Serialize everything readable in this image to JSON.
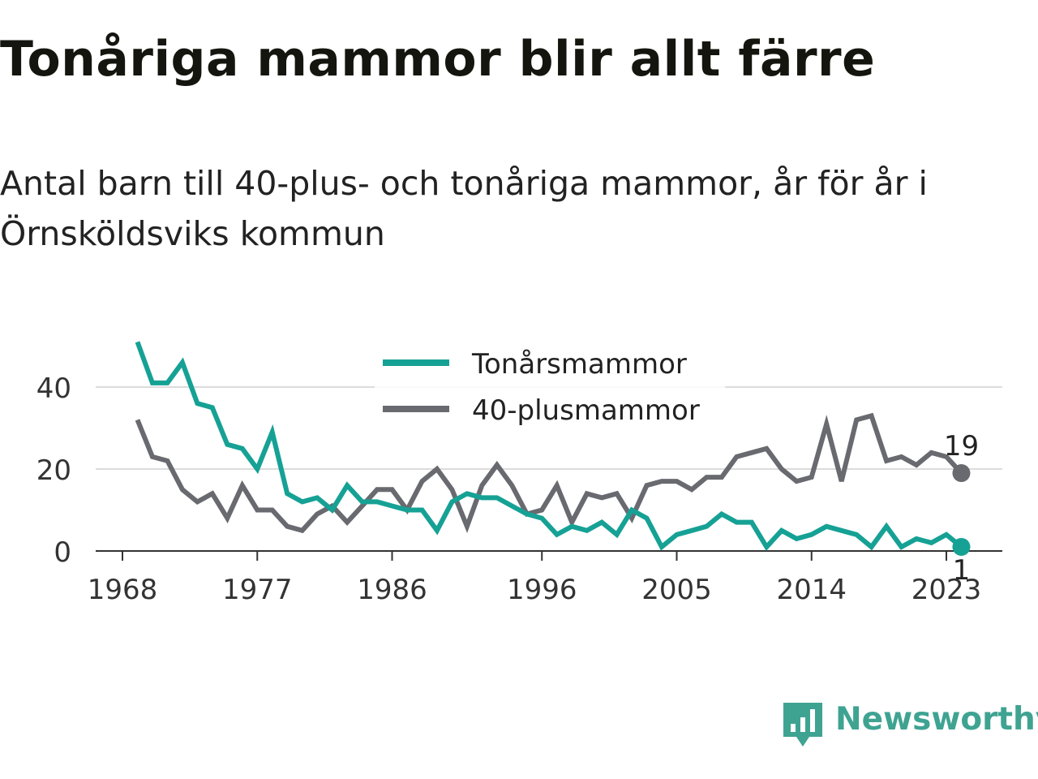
{
  "header": {
    "title": "Tonåriga mammor blir allt färre",
    "subtitle": "Antal barn till 40-plus- och tonåriga mammor, år för år i Örnsköldsviks kommun"
  },
  "chart_data": {
    "type": "line",
    "title": "Tonåriga mammor blir allt färre",
    "subtitle": "Antal barn till 40-plus- och tonåriga mammor, år för år i Örnsköldsviks kommun",
    "xlabel": "",
    "ylabel": "",
    "x_ticks": [
      1968,
      1977,
      1986,
      1996,
      2005,
      2014,
      2023
    ],
    "y_ticks": [
      0,
      20,
      40
    ],
    "xlim": [
      1968,
      2023
    ],
    "ylim": [
      0,
      51
    ],
    "grid": "horizontal",
    "legend_position": "top-center",
    "x": [
      1969,
      1970,
      1971,
      1972,
      1973,
      1974,
      1975,
      1976,
      1977,
      1978,
      1979,
      1980,
      1981,
      1982,
      1983,
      1984,
      1985,
      1986,
      1987,
      1988,
      1989,
      1990,
      1991,
      1992,
      1993,
      1994,
      1995,
      1996,
      1997,
      1998,
      1999,
      2000,
      2001,
      2002,
      2003,
      2004,
      2005,
      2006,
      2007,
      2008,
      2009,
      2010,
      2011,
      2012,
      2013,
      2014,
      2015,
      2016,
      2017,
      2018,
      2019,
      2020,
      2021,
      2022,
      2023,
      2024
    ],
    "series": [
      {
        "name": "Tonårsmammor",
        "color": "#16a195",
        "values": [
          51,
          41,
          41,
          46,
          36,
          35,
          26,
          25,
          20,
          29,
          14,
          12,
          13,
          10,
          16,
          12,
          12,
          11,
          10,
          10,
          5,
          12,
          14,
          13,
          13,
          11,
          9,
          8,
          4,
          6,
          5,
          7,
          4,
          10,
          8,
          1,
          4,
          5,
          6,
          9,
          7,
          7,
          1,
          5,
          3,
          4,
          6,
          5,
          4,
          1,
          6,
          1,
          3,
          2,
          4,
          1
        ],
        "end_label": "1"
      },
      {
        "name": "40-plusmammor",
        "color": "#696a70",
        "values": [
          32,
          23,
          22,
          15,
          12,
          14,
          8,
          16,
          10,
          10,
          6,
          5,
          9,
          11,
          7,
          11,
          15,
          15,
          10,
          17,
          20,
          15,
          6,
          16,
          21,
          16,
          9,
          10,
          16,
          7,
          14,
          13,
          14,
          8,
          16,
          17,
          17,
          15,
          18,
          18,
          23,
          24,
          25,
          20,
          17,
          18,
          31,
          17,
          32,
          33,
          22,
          23,
          21,
          24,
          23,
          19
        ],
        "end_label": "19"
      }
    ]
  },
  "brand": {
    "name": "Newsworthy",
    "color": "#3fa392",
    "logo_icon": "bar-chart-speech-bubble-icon"
  }
}
